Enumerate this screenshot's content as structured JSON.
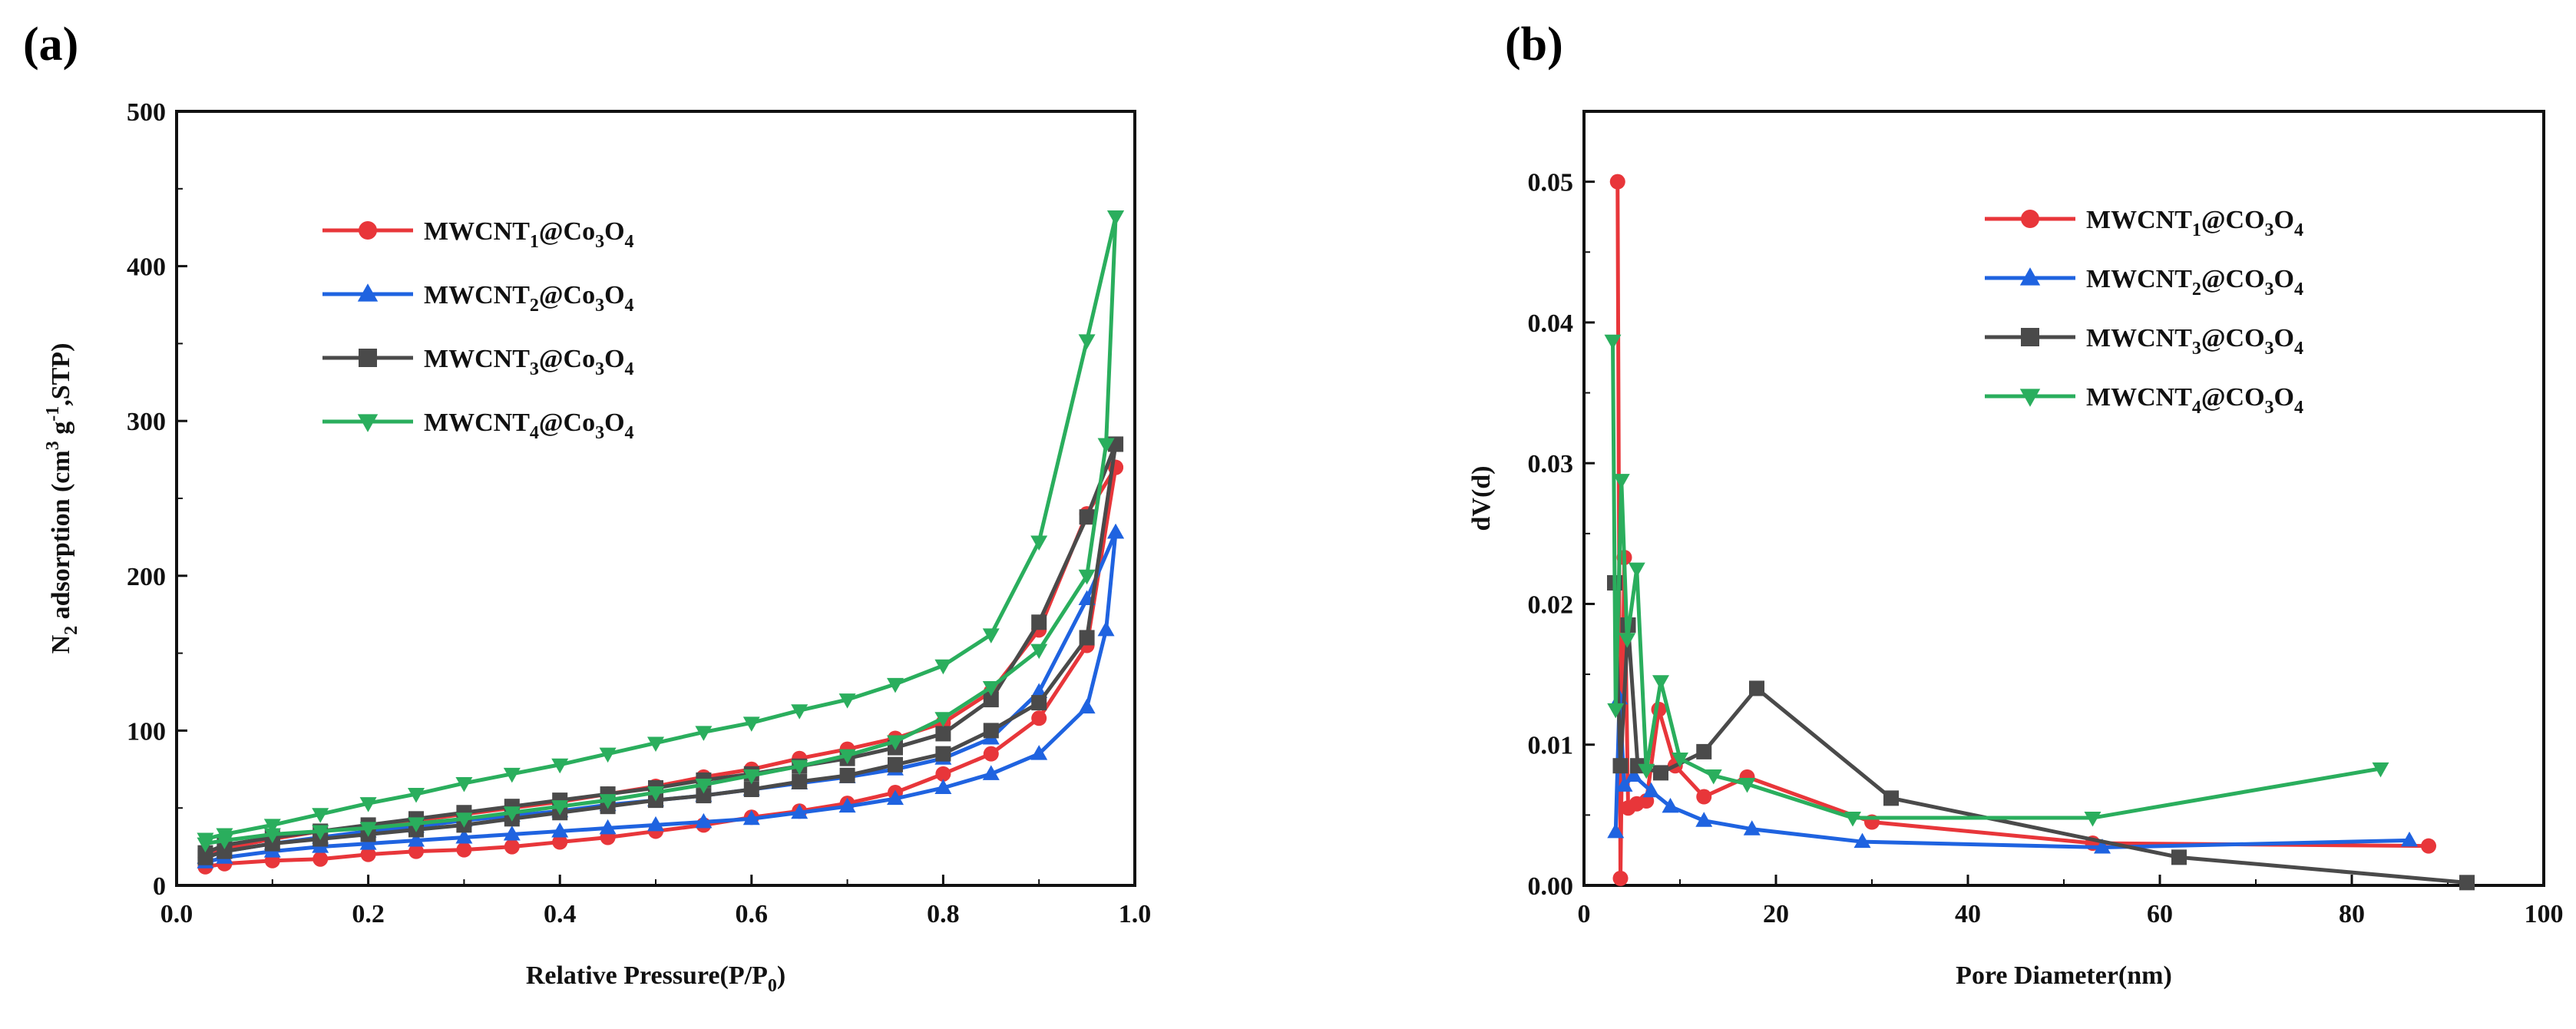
{
  "colors": {
    "red": "#e8363a",
    "blue": "#1f63e0",
    "gray": "#4a4a4a",
    "green": "#2aae5d",
    "axis": "#111111"
  },
  "chart_data": [
    {
      "panel": "(a)",
      "type": "line",
      "title": "",
      "xlabel": "Relative Pressure(P/P₀)",
      "xlabel_main": "Relative Pressure(P/P",
      "xlabel_sub": "0",
      "xlabel_end": ")",
      "ylabel": "N₂ adsorption (cm³ g⁻¹ ,STP)",
      "ylabel_parts": {
        "a": "N",
        "a_sub": "2",
        "b": " adsorption (cm",
        "b_sup": "3",
        "c": " g",
        "c_sup": "-1",
        "d": ",STP)"
      },
      "xlim": [
        0.0,
        1.0
      ],
      "ylim": [
        0,
        500
      ],
      "xticks": [
        0.0,
        0.2,
        0.4,
        0.6,
        0.8,
        1.0
      ],
      "xtick_labels": [
        "0.0",
        "0.2",
        "0.4",
        "0.6",
        "0.8",
        "1.0"
      ],
      "yticks": [
        0,
        100,
        200,
        300,
        400,
        500
      ],
      "ytick_labels": [
        "0",
        "100",
        "200",
        "300",
        "400",
        "500"
      ],
      "legend_position": "upper-left",
      "series": [
        {
          "name": "MWCNT1@Co3O4",
          "label_main": "MWCNT",
          "label_sub": "1",
          "label_mid": "@Co",
          "label_sub2": "3",
          "label_mid2": "O",
          "label_sub3": "4",
          "color_key": "red",
          "marker": "circle",
          "adsorption": [
            [
              0.03,
              12
            ],
            [
              0.05,
              14
            ],
            [
              0.1,
              16
            ],
            [
              0.15,
              17
            ],
            [
              0.2,
              20
            ],
            [
              0.25,
              22
            ],
            [
              0.3,
              23
            ],
            [
              0.35,
              25
            ],
            [
              0.4,
              28
            ],
            [
              0.45,
              31
            ],
            [
              0.5,
              35
            ],
            [
              0.55,
              39
            ],
            [
              0.6,
              44
            ],
            [
              0.65,
              48
            ],
            [
              0.7,
              53
            ],
            [
              0.75,
              60
            ],
            [
              0.8,
              72
            ],
            [
              0.85,
              85
            ],
            [
              0.9,
              108
            ],
            [
              0.95,
              155
            ],
            [
              0.98,
              270
            ]
          ],
          "desorption": [
            [
              0.98,
              270
            ],
            [
              0.95,
              240
            ],
            [
              0.9,
              165
            ],
            [
              0.85,
              125
            ],
            [
              0.8,
              105
            ],
            [
              0.75,
              95
            ],
            [
              0.7,
              88
            ],
            [
              0.65,
              82
            ],
            [
              0.6,
              75
            ],
            [
              0.55,
              70
            ],
            [
              0.5,
              64
            ],
            [
              0.45,
              59
            ],
            [
              0.4,
              54
            ],
            [
              0.35,
              50
            ],
            [
              0.3,
              46
            ],
            [
              0.25,
              42
            ],
            [
              0.2,
              38
            ],
            [
              0.15,
              35
            ],
            [
              0.1,
              30
            ],
            [
              0.05,
              24
            ],
            [
              0.03,
              18
            ]
          ]
        },
        {
          "name": "MWCNT2@Co3O4",
          "label_main": "MWCNT",
          "label_sub": "2",
          "label_mid": "@Co",
          "label_sub2": "3",
          "label_mid2": "O",
          "label_sub3": "4",
          "color_key": "blue",
          "marker": "triangle-up",
          "adsorption": [
            [
              0.03,
              15
            ],
            [
              0.05,
              18
            ],
            [
              0.1,
              22
            ],
            [
              0.15,
              25
            ],
            [
              0.2,
              27
            ],
            [
              0.25,
              29
            ],
            [
              0.3,
              31
            ],
            [
              0.35,
              33
            ],
            [
              0.4,
              35
            ],
            [
              0.45,
              37
            ],
            [
              0.5,
              39
            ],
            [
              0.55,
              41
            ],
            [
              0.6,
              43
            ],
            [
              0.65,
              47
            ],
            [
              0.7,
              51
            ],
            [
              0.75,
              56
            ],
            [
              0.8,
              63
            ],
            [
              0.85,
              72
            ],
            [
              0.9,
              85
            ],
            [
              0.95,
              115
            ],
            [
              0.97,
              165
            ],
            [
              0.98,
              228
            ]
          ],
          "desorption": [
            [
              0.98,
              228
            ],
            [
              0.95,
              185
            ],
            [
              0.9,
              125
            ],
            [
              0.85,
              95
            ],
            [
              0.8,
              82
            ],
            [
              0.75,
              75
            ],
            [
              0.7,
              70
            ],
            [
              0.65,
              66
            ],
            [
              0.6,
              62
            ],
            [
              0.55,
              58
            ],
            [
              0.5,
              55
            ],
            [
              0.45,
              52
            ],
            [
              0.4,
              48
            ],
            [
              0.35,
              45
            ],
            [
              0.3,
              42
            ],
            [
              0.25,
              38
            ],
            [
              0.2,
              35
            ],
            [
              0.15,
              31
            ],
            [
              0.1,
              27
            ],
            [
              0.05,
              22
            ],
            [
              0.03,
              18
            ]
          ]
        },
        {
          "name": "MWCNT3@Co3O4",
          "label_main": "MWCNT",
          "label_sub": "3",
          "label_mid": "@Co",
          "label_sub2": "3",
          "label_mid2": "O",
          "label_sub3": "4",
          "color_key": "gray",
          "marker": "square",
          "adsorption": [
            [
              0.03,
              18
            ],
            [
              0.05,
              22
            ],
            [
              0.1,
              27
            ],
            [
              0.15,
              30
            ],
            [
              0.2,
              33
            ],
            [
              0.25,
              36
            ],
            [
              0.3,
              39
            ],
            [
              0.35,
              43
            ],
            [
              0.4,
              47
            ],
            [
              0.45,
              51
            ],
            [
              0.5,
              55
            ],
            [
              0.55,
              58
            ],
            [
              0.6,
              62
            ],
            [
              0.65,
              67
            ],
            [
              0.7,
              71
            ],
            [
              0.75,
              78
            ],
            [
              0.8,
              85
            ],
            [
              0.85,
              100
            ],
            [
              0.9,
              118
            ],
            [
              0.95,
              160
            ],
            [
              0.98,
              285
            ]
          ],
          "desorption": [
            [
              0.98,
              285
            ],
            [
              0.95,
              238
            ],
            [
              0.9,
              170
            ],
            [
              0.85,
              120
            ],
            [
              0.8,
              98
            ],
            [
              0.75,
              89
            ],
            [
              0.7,
              82
            ],
            [
              0.65,
              77
            ],
            [
              0.6,
              72
            ],
            [
              0.55,
              68
            ],
            [
              0.5,
              63
            ],
            [
              0.45,
              59
            ],
            [
              0.4,
              55
            ],
            [
              0.35,
              51
            ],
            [
              0.3,
              47
            ],
            [
              0.25,
              43
            ],
            [
              0.2,
              39
            ],
            [
              0.15,
              35
            ],
            [
              0.1,
              31
            ],
            [
              0.05,
              26
            ],
            [
              0.03,
              21
            ]
          ]
        },
        {
          "name": "MWCNT4@Co3O4",
          "label_main": "MWCNT",
          "label_sub": "4",
          "label_mid": "@Co",
          "label_sub2": "3",
          "label_mid2": "O",
          "label_sub3": "4",
          "color_key": "green",
          "marker": "triangle-down",
          "adsorption": [
            [
              0.03,
              27
            ],
            [
              0.05,
              29
            ],
            [
              0.1,
              33
            ],
            [
              0.15,
              35
            ],
            [
              0.2,
              37
            ],
            [
              0.25,
              40
            ],
            [
              0.3,
              43
            ],
            [
              0.35,
              47
            ],
            [
              0.4,
              51
            ],
            [
              0.45,
              55
            ],
            [
              0.5,
              60
            ],
            [
              0.55,
              65
            ],
            [
              0.6,
              71
            ],
            [
              0.65,
              77
            ],
            [
              0.7,
              84
            ],
            [
              0.75,
              93
            ],
            [
              0.8,
              108
            ],
            [
              0.85,
              128
            ],
            [
              0.9,
              152
            ],
            [
              0.95,
              200
            ],
            [
              0.97,
              285
            ],
            [
              0.98,
              432
            ]
          ],
          "desorption": [
            [
              0.98,
              432
            ],
            [
              0.95,
              352
            ],
            [
              0.9,
              222
            ],
            [
              0.85,
              162
            ],
            [
              0.8,
              142
            ],
            [
              0.75,
              130
            ],
            [
              0.7,
              120
            ],
            [
              0.65,
              113
            ],
            [
              0.6,
              105
            ],
            [
              0.55,
              99
            ],
            [
              0.5,
              92
            ],
            [
              0.45,
              85
            ],
            [
              0.4,
              78
            ],
            [
              0.35,
              72
            ],
            [
              0.3,
              66
            ],
            [
              0.25,
              59
            ],
            [
              0.2,
              53
            ],
            [
              0.15,
              46
            ],
            [
              0.1,
              39
            ],
            [
              0.05,
              33
            ],
            [
              0.03,
              30
            ]
          ]
        }
      ]
    },
    {
      "panel": "(b)",
      "type": "line",
      "title": "",
      "xlabel": "Pore Diameter(nm)",
      "ylabel": "dV(d)",
      "xlim": [
        0,
        100
      ],
      "ylim": [
        0.0,
        0.055
      ],
      "xticks": [
        0,
        20,
        40,
        60,
        80,
        100
      ],
      "xtick_labels": [
        "0",
        "20",
        "40",
        "60",
        "80",
        "100"
      ],
      "yticks": [
        0.0,
        0.01,
        0.02,
        0.03,
        0.04,
        0.05
      ],
      "ytick_labels": [
        "0.00",
        "0.01",
        "0.02",
        "0.03",
        "0.04",
        "0.05"
      ],
      "legend_position": "upper-right",
      "series": [
        {
          "name": "MWCNT1@CO3O4",
          "label_main": "MWCNT",
          "label_sub": "1",
          "label_mid": "@CO",
          "label_sub2": "3",
          "label_mid2": "O",
          "label_sub3": "4",
          "color_key": "red",
          "marker": "circle",
          "points": [
            [
              3.5,
              0.05
            ],
            [
              3.8,
              0.0005
            ],
            [
              4.2,
              0.0233
            ],
            [
              4.6,
              0.0055
            ],
            [
              5.5,
              0.0058
            ],
            [
              6.5,
              0.006
            ],
            [
              7.8,
              0.0125
            ],
            [
              9.5,
              0.0085
            ],
            [
              12.5,
              0.0063
            ],
            [
              17.0,
              0.0077
            ],
            [
              30.0,
              0.0045
            ],
            [
              53.0,
              0.003
            ],
            [
              88.0,
              0.0028
            ]
          ]
        },
        {
          "name": "MWCNT2@CO3O4",
          "label_main": "MWCNT",
          "label_sub": "2",
          "label_mid": "@CO",
          "label_sub2": "3",
          "label_mid2": "O",
          "label_sub3": "4",
          "color_key": "blue",
          "marker": "triangle-up",
          "points": [
            [
              3.3,
              0.0038
            ],
            [
              3.7,
              0.0133
            ],
            [
              4.2,
              0.0071
            ],
            [
              5.2,
              0.0078
            ],
            [
              7.0,
              0.0067
            ],
            [
              9.0,
              0.0056
            ],
            [
              12.5,
              0.0046
            ],
            [
              17.5,
              0.004
            ],
            [
              29.0,
              0.0031
            ],
            [
              54.0,
              0.0027
            ],
            [
              86.0,
              0.0032
            ]
          ]
        },
        {
          "name": "MWCNT3@CO3O4",
          "label_main": "MWCNT",
          "label_sub": "3",
          "label_mid": "@CO",
          "label_sub2": "3",
          "label_mid2": "O",
          "label_sub3": "4",
          "color_key": "gray",
          "marker": "square",
          "points": [
            [
              3.2,
              0.0215
            ],
            [
              3.8,
              0.0085
            ],
            [
              4.6,
              0.0185
            ],
            [
              5.6,
              0.0085
            ],
            [
              8.0,
              0.008
            ],
            [
              12.5,
              0.0095
            ],
            [
              18.0,
              0.014
            ],
            [
              32.0,
              0.0062
            ],
            [
              62.0,
              0.002
            ],
            [
              92.0,
              0.0002
            ]
          ]
        },
        {
          "name": "MWCNT4@CO3O4",
          "label_main": "MWCNT",
          "label_sub": "4",
          "label_mid": "@CO",
          "label_sub2": "3",
          "label_mid2": "O",
          "label_sub3": "4",
          "color_key": "green",
          "marker": "triangle-down",
          "points": [
            [
              3.0,
              0.0387
            ],
            [
              3.3,
              0.0125
            ],
            [
              3.9,
              0.0288
            ],
            [
              4.5,
              0.0175
            ],
            [
              5.5,
              0.0225
            ],
            [
              6.5,
              0.0082
            ],
            [
              8.0,
              0.0145
            ],
            [
              10.0,
              0.009
            ],
            [
              13.5,
              0.0078
            ],
            [
              17.0,
              0.0072
            ],
            [
              28.0,
              0.0048
            ],
            [
              53.0,
              0.0048
            ],
            [
              83.0,
              0.0083
            ]
          ]
        }
      ]
    }
  ]
}
